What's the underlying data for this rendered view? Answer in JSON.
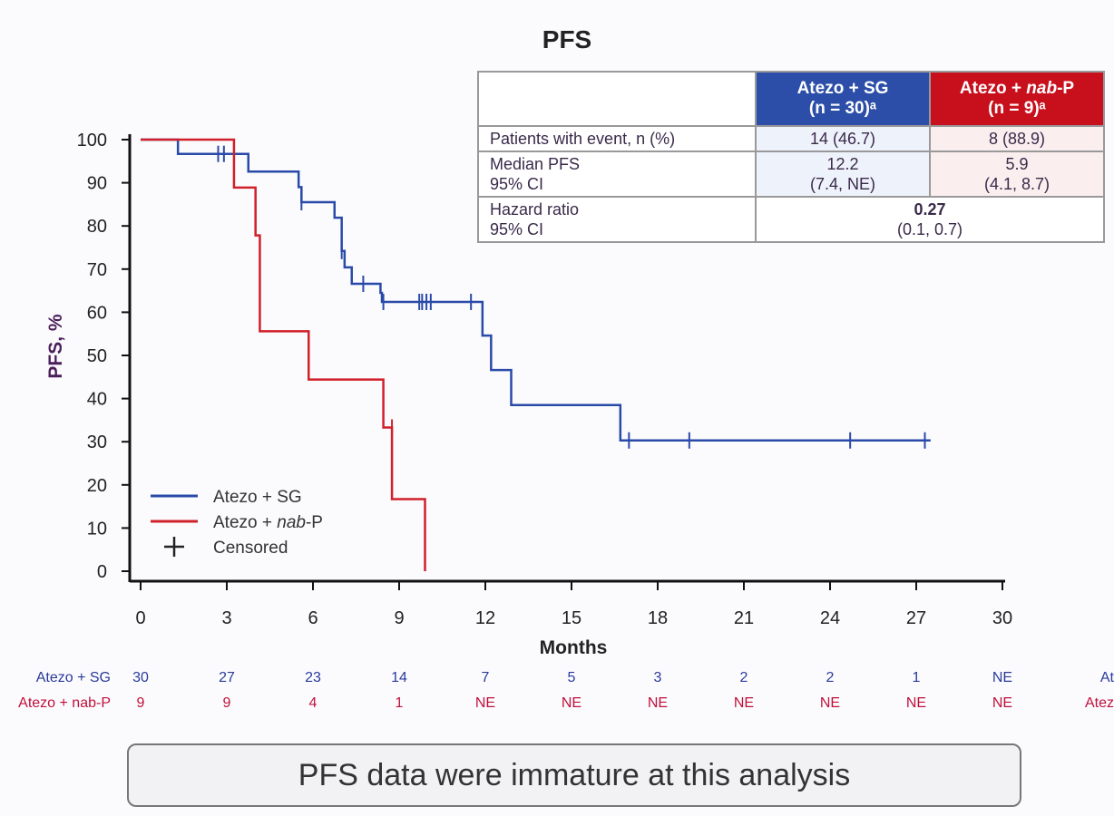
{
  "chart_data": {
    "type": "line",
    "title": "PFS",
    "xlabel": "Months",
    "ylabel": "PFS, %",
    "xlim": [
      0,
      30
    ],
    "ylim": [
      0,
      100
    ],
    "xticks": [
      0,
      3,
      6,
      9,
      12,
      15,
      18,
      21,
      24,
      27,
      30
    ],
    "yticks": [
      0,
      10,
      20,
      30,
      40,
      50,
      60,
      70,
      80,
      90,
      100
    ],
    "grid": false,
    "legend_placement": "bottom-left",
    "series": [
      {
        "name": "Atezo + SG",
        "color": "#2a4aa8",
        "steps": [
          [
            0,
            100
          ],
          [
            1.3,
            96.7
          ],
          [
            3.75,
            92.6
          ],
          [
            5.5,
            89
          ],
          [
            5.6,
            85.5
          ],
          [
            6.75,
            81.9
          ],
          [
            7.0,
            74.2
          ],
          [
            7.1,
            70.4
          ],
          [
            7.35,
            66.6
          ],
          [
            8.35,
            64.5
          ],
          [
            8.4,
            62.4
          ],
          [
            11.9,
            54.6
          ],
          [
            12.2,
            46.6
          ],
          [
            12.9,
            38.5
          ],
          [
            16.7,
            30.3
          ]
        ],
        "end": 27.5,
        "censored": [
          [
            2.7,
            96.7
          ],
          [
            2.9,
            96.7
          ],
          [
            5.6,
            85.5
          ],
          [
            7.0,
            74.2
          ],
          [
            7.75,
            66.6
          ],
          [
            8.45,
            62.4
          ],
          [
            9.7,
            62.4
          ],
          [
            9.8,
            62.4
          ],
          [
            9.95,
            62.4
          ],
          [
            10.1,
            62.4
          ],
          [
            11.5,
            62.4
          ],
          [
            17.0,
            30.3
          ],
          [
            19.1,
            30.3
          ],
          [
            24.7,
            30.3
          ],
          [
            27.3,
            30.3
          ]
        ]
      },
      {
        "name": "Atezo + nab-P",
        "color": "#d0202a",
        "steps": [
          [
            0,
            100
          ],
          [
            3.25,
            88.9
          ],
          [
            4.0,
            77.8
          ],
          [
            4.15,
            55.6
          ],
          [
            5.85,
            44.4
          ],
          [
            8.45,
            33.3
          ],
          [
            8.75,
            16.7
          ],
          [
            9.9,
            0
          ]
        ],
        "end": 9.9,
        "censored": [
          [
            8.75,
            33.3
          ]
        ]
      }
    ],
    "legend": [
      {
        "label_prefix": "Atezo + SG",
        "label_italic": ""
      },
      {
        "label_prefix": "Atezo + ",
        "label_italic": "nab",
        "label_suffix": "-P"
      },
      {
        "label_prefix": "Censored",
        "label_italic": ""
      }
    ]
  },
  "summary_table": {
    "headers": [
      {
        "line1": "Atezo + SG",
        "line2": "(n = 30)ᵃ"
      },
      {
        "line1a": "Atezo + ",
        "line1i": "nab",
        "line1b": "-P",
        "line2": "(n = 9)ᵃ"
      }
    ],
    "rows": [
      {
        "label": "Patients with event, n (%)",
        "sg": "14 (46.7)",
        "np": "8 (88.9)"
      },
      {
        "label": "Median PFS",
        "label2": "95% CI",
        "sg": "12.2",
        "sg2": "(7.4, NE)",
        "np": "5.9",
        "np2": "(4.1, 8.7)"
      },
      {
        "label": "Hazard ratio",
        "label2": "95% CI",
        "value": "0.27",
        "value2": "(0.1, 0.7)"
      }
    ]
  },
  "risk_table": {
    "rows": [
      {
        "label": "Atezo + SG",
        "color": "#2a3a9a",
        "values": [
          "30",
          "27",
          "23",
          "14",
          "7",
          "5",
          "3",
          "2",
          "2",
          "1",
          "NE"
        ],
        "clipped_right": "At"
      },
      {
        "label": "Atezo + nab-P",
        "color": "#c0103a",
        "values": [
          "9",
          "9",
          "4",
          "1",
          "NE",
          "NE",
          "NE",
          "NE",
          "NE",
          "NE",
          "NE"
        ],
        "clipped_right": "Atez"
      }
    ]
  },
  "note": "PFS data were immature at this analysis"
}
